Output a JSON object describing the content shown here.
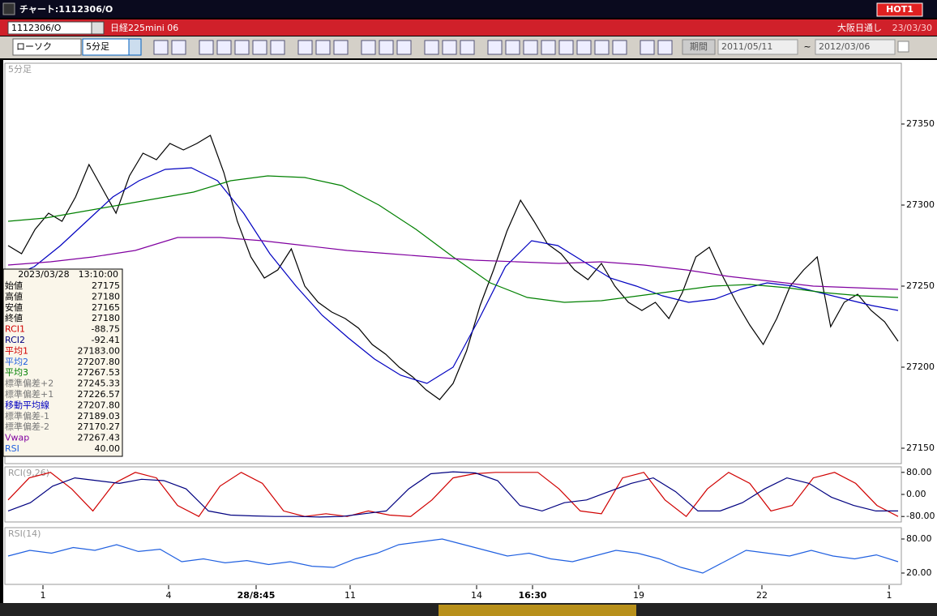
{
  "window": {
    "title": "チャート:1112306/O",
    "hot": "HOT1"
  },
  "symbol_bar": {
    "code": "1112306/O",
    "name": "日経225mini 06",
    "market": "大阪日通し",
    "date": "23/03/30"
  },
  "toolbar": {
    "chart_type": "ローソク",
    "interval": "5分足",
    "period_button": "期間",
    "from": "2011/05/11",
    "separator": "~",
    "to": "2012/03/06"
  },
  "chart_data": [
    {
      "type": "line",
      "label": "5分足",
      "ylim": [
        27140.5,
        27387.5
      ],
      "yticks": [
        27150,
        27200,
        27250,
        27300,
        27350
      ],
      "series": [
        {
          "name": "終値",
          "color": "#000000",
          "values": [
            27275,
            27270,
            27285,
            27295,
            27290,
            27305,
            27325,
            27310,
            27295,
            27318,
            27332,
            27328,
            27338,
            27334,
            27338,
            27343,
            27320,
            27290,
            27268,
            27255,
            27260,
            27273,
            27250,
            27240,
            27234,
            27230,
            27224,
            27214,
            27208,
            27200,
            27194,
            27186,
            27180,
            27190,
            27210,
            27238,
            27260,
            27284,
            27303,
            27290,
            27276,
            27270,
            27260,
            27254,
            27264,
            27250,
            27240,
            27235,
            27240,
            27230,
            27246,
            27268,
            27274,
            27256,
            27240,
            27226,
            27214,
            27230,
            27250,
            27260,
            27268,
            27225,
            27240,
            27245,
            27235,
            27228,
            27216
          ]
        },
        {
          "name": "移動平均線",
          "color": "#0000c0",
          "values": [
            27255,
            27262,
            27275,
            27290,
            27305,
            27315,
            27322,
            27323,
            27315,
            27295,
            27270,
            27250,
            27232,
            27218,
            27205,
            27195,
            27190,
            27200,
            27230,
            27262,
            27278,
            27275,
            27265,
            27255,
            27250,
            27244,
            27240,
            27242,
            27248,
            27252,
            27250,
            27246,
            27242,
            27238,
            27235
          ]
        },
        {
          "name": "平均3",
          "color": "#008000",
          "values": [
            27290,
            27292,
            27296,
            27300,
            27304,
            27308,
            27315,
            27318,
            27317,
            27312,
            27300,
            27285,
            27268,
            27252,
            27243,
            27240,
            27241,
            27244,
            27247,
            27250,
            27251,
            27249,
            27246,
            27244,
            27243
          ]
        },
        {
          "name": "Vwap",
          "color": "#8000a0",
          "values": [
            27263,
            27265,
            27268,
            27272,
            27280,
            27280,
            27278,
            27275,
            27272,
            27270,
            27268,
            27266,
            27265,
            27264,
            27265,
            27263,
            27260,
            27256,
            27253,
            27250,
            27249,
            27248
          ]
        }
      ]
    },
    {
      "type": "line",
      "label": "RCI(9,26)",
      "ylim": [
        -100,
        100
      ],
      "yticks": [
        {
          "value": 80,
          "label": "80.00"
        },
        {
          "value": 0,
          "label": "0.00"
        },
        {
          "value": -80,
          "label": "-80.00"
        }
      ],
      "series": [
        {
          "name": "RCI1",
          "color": "#d00000",
          "values": [
            -20,
            60,
            80,
            20,
            -60,
            40,
            80,
            60,
            -40,
            -80,
            30,
            80,
            40,
            -60,
            -80,
            -70,
            -80,
            -60,
            -75,
            -80,
            -20,
            60,
            75,
            80,
            80,
            80,
            20,
            -60,
            -70,
            60,
            80,
            -20,
            -80,
            20,
            80,
            40,
            -60,
            -40,
            60,
            80,
            40,
            -40,
            -80
          ]
        },
        {
          "name": "RCI2",
          "color": "#000080",
          "values": [
            -60,
            -30,
            30,
            60,
            50,
            40,
            55,
            50,
            20,
            -60,
            -75,
            -78,
            -80,
            -80,
            -82,
            -80,
            -70,
            -60,
            20,
            75,
            82,
            78,
            50,
            -40,
            -60,
            -30,
            -20,
            10,
            40,
            60,
            10,
            -60,
            -60,
            -30,
            20,
            60,
            40,
            -10,
            -40,
            -60,
            -60
          ]
        }
      ]
    },
    {
      "type": "line",
      "label": "RSI(14)",
      "ylim": [
        0,
        100
      ],
      "yticks": [
        {
          "value": 80,
          "label": "80.00"
        },
        {
          "value": 20,
          "label": "20.00"
        }
      ],
      "series": [
        {
          "name": "RSI",
          "color": "#2060e0",
          "values": [
            50,
            60,
            55,
            65,
            60,
            70,
            58,
            62,
            40,
            45,
            38,
            42,
            35,
            40,
            32,
            30,
            45,
            55,
            70,
            75,
            80,
            70,
            60,
            50,
            55,
            45,
            40,
            50,
            60,
            55,
            45,
            30,
            20,
            40,
            60,
            55,
            50,
            60,
            50,
            45,
            52,
            40
          ]
        }
      ]
    }
  ],
  "x_axis": {
    "labels": [
      "1",
      "4",
      "28/8:45",
      "11",
      "14",
      "16:30",
      "19",
      "22",
      "1"
    ]
  },
  "info_panel": {
    "datetime": "2023/03/28　13:10:00",
    "rows": [
      [
        "始値",
        "27175"
      ],
      [
        "高値",
        "27180"
      ],
      [
        "安値",
        "27165"
      ],
      [
        "終値",
        "27180"
      ],
      [
        "RCI1",
        "-88.75"
      ],
      [
        "RCI2",
        "-92.41"
      ],
      [
        "平均1",
        "27183.00"
      ],
      [
        "平均2",
        "27207.80"
      ],
      [
        "平均3",
        "27267.53"
      ],
      [
        "標準偏差+2",
        "27245.33"
      ],
      [
        "標準偏差+1",
        "27226.57"
      ],
      [
        "移動平均線",
        "27207.80"
      ],
      [
        "標準偏差-1",
        "27189.03"
      ],
      [
        "標準偏差-2",
        "27170.27"
      ],
      [
        "Vwap",
        "27267.43"
      ],
      [
        "RSI",
        "40.00"
      ]
    ]
  }
}
